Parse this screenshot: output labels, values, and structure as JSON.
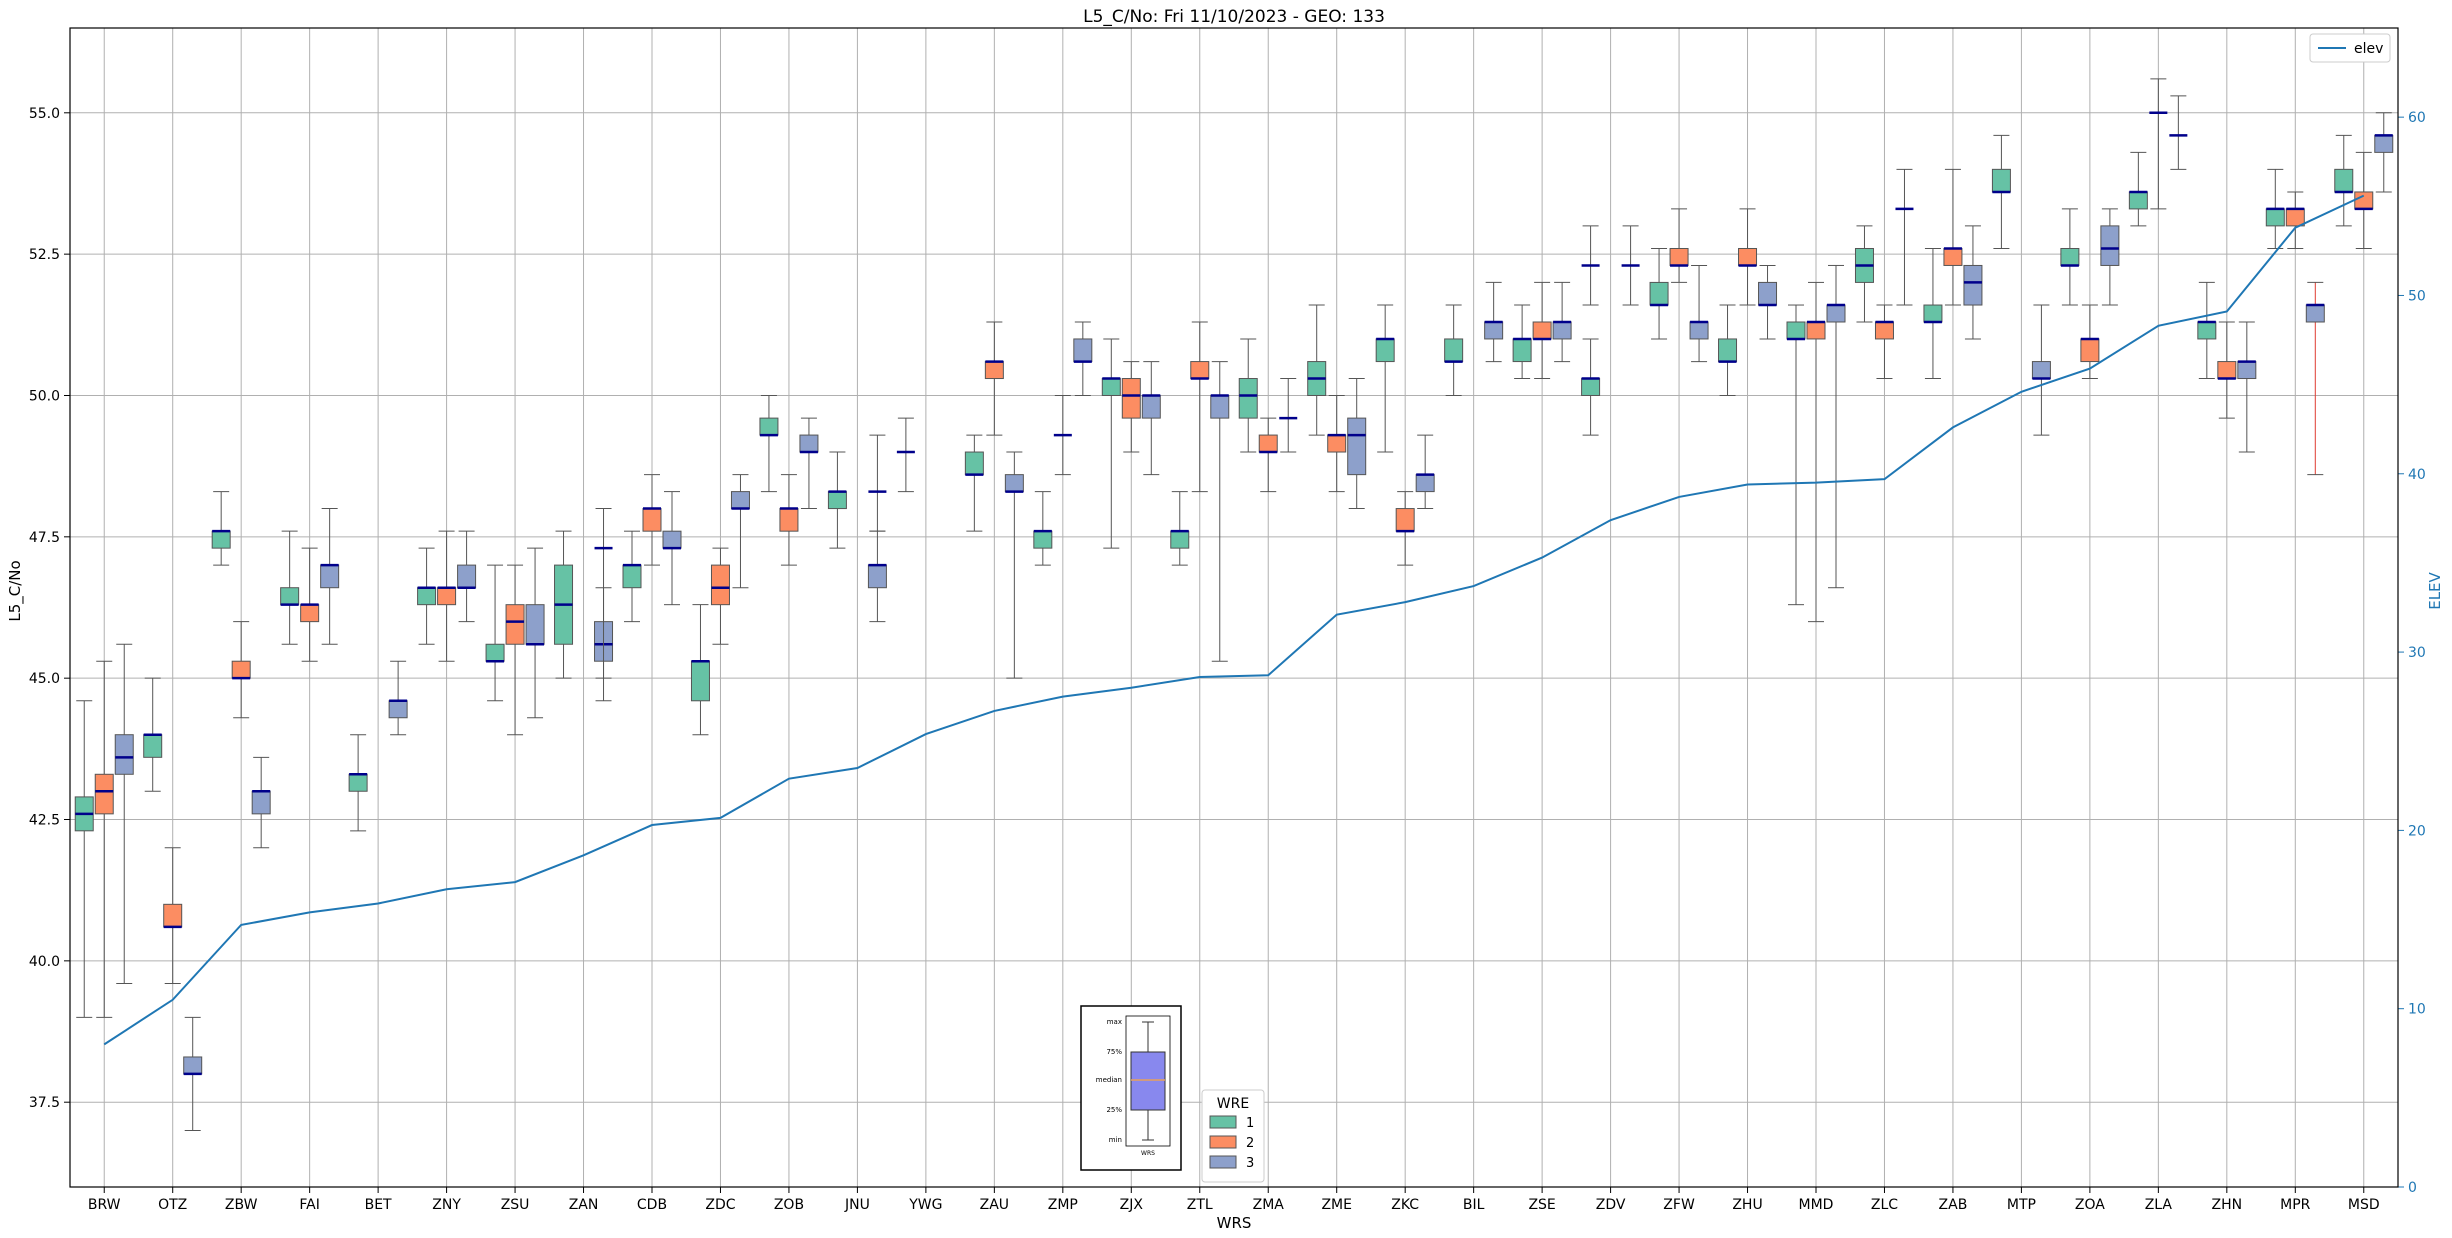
{
  "chart_data": {
    "type": "box",
    "title": "L5_C/No: Fri 11/10/2023 - GEO: 133",
    "xlabel": "WRS",
    "ylabel": "L5_C/No",
    "y2label": "ELEV",
    "ylim": [
      36.0,
      56.5
    ],
    "y2lim": [
      0,
      65
    ],
    "yticks": [
      "37.5",
      "40.0",
      "42.5",
      "45.0",
      "47.5",
      "50.0",
      "52.5",
      "55.0"
    ],
    "y2ticks": [
      "0",
      "10",
      "20",
      "30",
      "40",
      "50",
      "60"
    ],
    "grid": true,
    "categories": [
      "BRW",
      "OTZ",
      "ZBW",
      "FAI",
      "BET",
      "ZNY",
      "ZSU",
      "ZAN",
      "CDB",
      "ZDC",
      "ZOB",
      "JNU",
      "YWG",
      "ZAU",
      "ZMP",
      "ZJX",
      "ZTL",
      "ZMA",
      "ZME",
      "ZKC",
      "BIL",
      "ZSE",
      "ZDV",
      "ZFW",
      "ZHU",
      "MMD",
      "ZLC",
      "ZAB",
      "MTP",
      "ZOA",
      "ZLA",
      "ZHN",
      "MPR",
      "MSD"
    ],
    "legend": {
      "title": "WRE",
      "placement": "bottom-center",
      "entries": [
        {
          "label": "1",
          "color": "#66c2a5"
        },
        {
          "label": "2",
          "color": "#fc8d62"
        },
        {
          "label": "3",
          "color": "#8da0cb"
        }
      ]
    },
    "line_legend": {
      "label": "elev",
      "color": "#1f77b4",
      "placement": "top-right"
    },
    "inset_legend": {
      "labels": [
        "max",
        "75%",
        "median",
        "25%",
        "min"
      ],
      "xlabel": "WRS"
    },
    "colors": {
      "wre1": "#66c2a5",
      "wre2": "#fc8d62",
      "wre3": "#8da0cb",
      "median": "#00008b",
      "whisker": "#555555",
      "elev": "#1f77b4",
      "outlier_whisker": "#e03c31"
    },
    "series": [
      {
        "name": "1",
        "boxes": [
          {
            "cat": "BRW",
            "min": 39.0,
            "q1": 42.3,
            "med": 42.6,
            "q3": 42.9,
            "max": 44.6
          },
          {
            "cat": "OTZ",
            "min": 43.0,
            "q1": 43.6,
            "med": 44.0,
            "q3": 44.0,
            "max": 45.0
          },
          {
            "cat": "ZBW",
            "min": 47.0,
            "q1": 47.3,
            "med": 47.6,
            "q3": 47.6,
            "max": 48.3
          },
          {
            "cat": "FAI",
            "min": 45.6,
            "q1": 46.3,
            "med": 46.3,
            "q3": 46.6,
            "max": 47.6
          },
          {
            "cat": "BET",
            "min": 42.3,
            "q1": 43.0,
            "med": 43.3,
            "q3": 43.3,
            "max": 44.0
          },
          {
            "cat": "ZNY",
            "min": 45.6,
            "q1": 46.3,
            "med": 46.6,
            "q3": 46.6,
            "max": 47.3
          },
          {
            "cat": "ZSU",
            "min": 44.6,
            "q1": 45.3,
            "med": 45.3,
            "q3": 45.6,
            "max": 47.0
          },
          {
            "cat": "ZAN",
            "min": 45.0,
            "q1": 45.6,
            "med": 46.3,
            "q3": 47.0,
            "max": 47.6
          },
          {
            "cat": "CDB",
            "min": 46.0,
            "q1": 46.6,
            "med": 47.0,
            "q3": 47.0,
            "max": 47.6
          },
          {
            "cat": "ZDC",
            "min": 44.0,
            "q1": 44.6,
            "med": 45.3,
            "q3": 45.3,
            "max": 46.3
          },
          {
            "cat": "ZOB",
            "min": 48.3,
            "q1": 49.3,
            "med": 49.3,
            "q3": 49.6,
            "max": 50.0
          },
          {
            "cat": "JNU",
            "min": 47.3,
            "q1": 48.0,
            "med": 48.3,
            "q3": 48.3,
            "max": 49.0
          },
          {
            "cat": "ZAU",
            "min": 47.6,
            "q1": 48.6,
            "med": 48.6,
            "q3": 49.0,
            "max": 49.3
          },
          {
            "cat": "ZMP",
            "min": 47.0,
            "q1": 47.3,
            "med": 47.6,
            "q3": 47.6,
            "max": 48.3
          },
          {
            "cat": "ZJX",
            "min": 47.3,
            "q1": 50.0,
            "med": 50.3,
            "q3": 50.3,
            "max": 51.0
          },
          {
            "cat": "ZTL",
            "min": 47.0,
            "q1": 47.3,
            "med": 47.6,
            "q3": 47.6,
            "max": 48.3
          },
          {
            "cat": "ZMA",
            "min": 49.0,
            "q1": 49.6,
            "med": 50.0,
            "q3": 50.3,
            "max": 51.0
          },
          {
            "cat": "ZME",
            "min": 49.3,
            "q1": 50.0,
            "med": 50.3,
            "q3": 50.6,
            "max": 51.6
          },
          {
            "cat": "ZKC",
            "min": 49.0,
            "q1": 50.6,
            "med": 51.0,
            "q3": 51.0,
            "max": 51.6
          },
          {
            "cat": "BIL",
            "min": 50.0,
            "q1": 50.6,
            "med": 50.6,
            "q3": 51.0,
            "max": 51.6
          },
          {
            "cat": "ZSE",
            "min": 50.3,
            "q1": 50.6,
            "med": 51.0,
            "q3": 51.0,
            "max": 51.6
          },
          {
            "cat": "ZDV",
            "min": 49.3,
            "q1": 50.0,
            "med": 50.3,
            "q3": 50.3,
            "max": 51.0
          },
          {
            "cat": "ZFW",
            "min": 51.0,
            "q1": 51.6,
            "med": 51.6,
            "q3": 52.0,
            "max": 52.6
          },
          {
            "cat": "ZHU",
            "min": 50.0,
            "q1": 50.6,
            "med": 50.6,
            "q3": 51.0,
            "max": 51.6
          },
          {
            "cat": "MMD",
            "min": 46.3,
            "q1": 51.0,
            "med": 51.0,
            "q3": 51.3,
            "max": 51.6
          },
          {
            "cat": "ZLC",
            "min": 51.3,
            "q1": 52.0,
            "med": 52.3,
            "q3": 52.6,
            "max": 53.0
          },
          {
            "cat": "ZAB",
            "min": 50.3,
            "q1": 51.3,
            "med": 51.3,
            "q3": 51.6,
            "max": 52.6
          },
          {
            "cat": "MTP",
            "min": 52.6,
            "q1": 53.6,
            "med": 53.6,
            "q3": 54.0,
            "max": 54.6
          },
          {
            "cat": "ZOA",
            "min": 51.6,
            "q1": 52.3,
            "med": 52.3,
            "q3": 52.6,
            "max": 53.3
          },
          {
            "cat": "ZLA",
            "min": 53.0,
            "q1": 53.3,
            "med": 53.6,
            "q3": 53.6,
            "max": 54.3
          },
          {
            "cat": "ZHN",
            "min": 50.3,
            "q1": 51.0,
            "med": 51.3,
            "q3": 51.3,
            "max": 52.0
          },
          {
            "cat": "MPR",
            "min": 52.6,
            "q1": 53.0,
            "med": 53.3,
            "q3": 53.3,
            "max": 54.0
          },
          {
            "cat": "MSD",
            "min": 53.0,
            "q1": 53.6,
            "med": 53.6,
            "q3": 54.0,
            "max": 54.6
          }
        ]
      },
      {
        "name": "2",
        "boxes": [
          {
            "cat": "BRW",
            "min": 39.0,
            "q1": 42.6,
            "med": 43.0,
            "q3": 43.3,
            "max": 45.3
          },
          {
            "cat": "OTZ",
            "min": 39.6,
            "q1": 40.6,
            "med": 40.6,
            "q3": 41.0,
            "max": 42.0
          },
          {
            "cat": "ZBW",
            "min": 44.3,
            "q1": 45.0,
            "med": 45.0,
            "q3": 45.3,
            "max": 46.0
          },
          {
            "cat": "FAI",
            "min": 45.3,
            "q1": 46.0,
            "med": 46.3,
            "q3": 46.3,
            "max": 47.3
          },
          {
            "cat": "ZNY",
            "min": 45.3,
            "q1": 46.3,
            "med": 46.6,
            "q3": 46.6,
            "max": 47.6
          },
          {
            "cat": "ZSU",
            "min": 44.0,
            "q1": 45.6,
            "med": 46.0,
            "q3": 46.3,
            "max": 47.0
          },
          {
            "cat": "CDB",
            "min": 47.0,
            "q1": 47.6,
            "med": 48.0,
            "q3": 48.0,
            "max": 48.6
          },
          {
            "cat": "ZDC",
            "min": 45.6,
            "q1": 46.3,
            "med": 46.6,
            "q3": 47.0,
            "max": 47.3
          },
          {
            "cat": "ZOB",
            "min": 47.0,
            "q1": 47.6,
            "med": 48.0,
            "q3": 48.0,
            "max": 48.6
          },
          {
            "cat": "ZAU",
            "min": 49.3,
            "q1": 50.3,
            "med": 50.6,
            "q3": 50.6,
            "max": 51.3
          },
          {
            "cat": "ZJX",
            "min": 49.0,
            "q1": 49.6,
            "med": 50.0,
            "q3": 50.3,
            "max": 50.6
          },
          {
            "cat": "ZTL",
            "min": 48.3,
            "q1": 50.3,
            "med": 50.3,
            "q3": 50.6,
            "max": 51.3
          },
          {
            "cat": "ZMA",
            "min": 48.3,
            "q1": 49.0,
            "med": 49.0,
            "q3": 49.3,
            "max": 49.6
          },
          {
            "cat": "ZME",
            "min": 48.3,
            "q1": 49.0,
            "med": 49.3,
            "q3": 49.3,
            "max": 50.0
          },
          {
            "cat": "ZKC",
            "min": 47.0,
            "q1": 47.6,
            "med": 47.6,
            "q3": 48.0,
            "max": 48.3
          },
          {
            "cat": "ZSE",
            "min": 50.3,
            "q1": 51.0,
            "med": 51.0,
            "q3": 51.3,
            "max": 52.0
          },
          {
            "cat": "ZFW",
            "min": 52.0,
            "q1": 52.3,
            "med": 52.3,
            "q3": 52.6,
            "max": 53.3
          },
          {
            "cat": "ZHU",
            "min": 51.6,
            "q1": 52.3,
            "med": 52.3,
            "q3": 52.6,
            "max": 53.3
          },
          {
            "cat": "MMD",
            "min": 46.0,
            "q1": 51.0,
            "med": 51.3,
            "q3": 51.3,
            "max": 52.0
          },
          {
            "cat": "ZLC",
            "min": 50.3,
            "q1": 51.0,
            "med": 51.3,
            "q3": 51.3,
            "max": 51.6
          },
          {
            "cat": "ZAB",
            "min": 51.6,
            "q1": 52.3,
            "med": 52.6,
            "q3": 52.6,
            "max": 54.0
          },
          {
            "cat": "ZOA",
            "min": 50.3,
            "q1": 50.6,
            "med": 51.0,
            "q3": 51.0,
            "max": 51.6
          },
          {
            "cat": "ZHN",
            "min": 49.6,
            "q1": 50.3,
            "med": 50.3,
            "q3": 50.6,
            "max": 51.3
          },
          {
            "cat": "MPR",
            "min": 52.6,
            "q1": 53.0,
            "med": 53.3,
            "q3": 53.3,
            "max": 53.6
          },
          {
            "cat": "MSD",
            "min": 52.6,
            "q1": 53.3,
            "med": 53.3,
            "q3": 53.6,
            "max": 54.3
          }
        ]
      },
      {
        "name": "3",
        "boxes": [
          {
            "cat": "BRW",
            "min": 39.6,
            "q1": 43.3,
            "med": 43.6,
            "q3": 44.0,
            "max": 45.6
          },
          {
            "cat": "OTZ",
            "min": 37.0,
            "q1": 38.0,
            "med": 38.0,
            "q3": 38.3,
            "max": 39.0
          },
          {
            "cat": "ZBW",
            "min": 42.0,
            "q1": 42.6,
            "med": 43.0,
            "q3": 43.0,
            "max": 43.6
          },
          {
            "cat": "FAI",
            "min": 45.6,
            "q1": 46.6,
            "med": 47.0,
            "q3": 47.0,
            "max": 48.0
          },
          {
            "cat": "BET",
            "min": 44.0,
            "q1": 44.3,
            "med": 44.6,
            "q3": 44.6,
            "max": 45.3
          },
          {
            "cat": "ZNY",
            "min": 46.0,
            "q1": 46.6,
            "med": 46.6,
            "q3": 47.0,
            "max": 47.6
          },
          {
            "cat": "ZSU",
            "min": 44.3,
            "q1": 45.6,
            "med": 45.6,
            "q3": 46.3,
            "max": 47.3
          },
          {
            "cat": "ZAN",
            "min": 44.6,
            "q1": 45.3,
            "med": 45.6,
            "q3": 46.0,
            "max": 46.6
          },
          {
            "cat": "CDB",
            "min": 46.3,
            "q1": 47.3,
            "med": 47.3,
            "q3": 47.6,
            "max": 48.3
          },
          {
            "cat": "ZDC",
            "min": 46.6,
            "q1": 48.0,
            "med": 48.0,
            "q3": 48.3,
            "max": 48.6
          },
          {
            "cat": "ZOB",
            "min": 48.0,
            "q1": 49.0,
            "med": 49.0,
            "q3": 49.3,
            "max": 49.6
          },
          {
            "cat": "JNU",
            "min": 46.0,
            "q1": 46.6,
            "med": 47.0,
            "q3": 47.0,
            "max": 47.6
          },
          {
            "cat": "ZAU",
            "min": 45.0,
            "q1": 48.3,
            "med": 48.3,
            "q3": 48.6,
            "max": 49.0
          },
          {
            "cat": "ZMP",
            "min": 50.0,
            "q1": 50.6,
            "med": 50.6,
            "q3": 51.0,
            "max": 51.3
          },
          {
            "cat": "ZJX",
            "min": 48.6,
            "q1": 49.6,
            "med": 50.0,
            "q3": 50.0,
            "max": 50.6
          },
          {
            "cat": "ZTL",
            "min": 45.3,
            "q1": 49.6,
            "med": 50.0,
            "q3": 50.0,
            "max": 50.6
          },
          {
            "cat": "ZME",
            "min": 48.0,
            "q1": 48.6,
            "med": 49.3,
            "q3": 49.6,
            "max": 50.3
          },
          {
            "cat": "ZKC",
            "min": 48.0,
            "q1": 48.3,
            "med": 48.6,
            "q3": 48.6,
            "max": 49.3
          },
          {
            "cat": "BIL",
            "min": 50.6,
            "q1": 51.0,
            "med": 51.3,
            "q3": 51.3,
            "max": 52.0
          },
          {
            "cat": "ZSE",
            "min": 50.6,
            "q1": 51.0,
            "med": 51.3,
            "q3": 51.3,
            "max": 52.0
          },
          {
            "cat": "ZFW",
            "min": 50.6,
            "q1": 51.0,
            "med": 51.3,
            "q3": 51.3,
            "max": 52.3
          },
          {
            "cat": "ZHU",
            "min": 51.0,
            "q1": 51.6,
            "med": 51.6,
            "q3": 52.0,
            "max": 52.3
          },
          {
            "cat": "MMD",
            "min": 46.6,
            "q1": 51.3,
            "med": 51.6,
            "q3": 51.6,
            "max": 52.3
          },
          {
            "cat": "ZAB",
            "min": 51.0,
            "q1": 51.6,
            "med": 52.0,
            "q3": 52.3,
            "max": 53.0
          },
          {
            "cat": "MTP",
            "min": 49.3,
            "q1": 50.3,
            "med": 50.3,
            "q3": 50.6,
            "max": 51.6
          },
          {
            "cat": "ZOA",
            "min": 51.6,
            "q1": 52.3,
            "med": 52.6,
            "q3": 53.0,
            "max": 53.3
          },
          {
            "cat": "ZHN",
            "min": 49.0,
            "q1": 50.3,
            "med": 50.6,
            "q3": 50.6,
            "max": 51.3
          },
          {
            "cat": "MSD",
            "min": 53.6,
            "q1": 54.3,
            "med": 54.6,
            "q3": 54.6,
            "max": 55.0
          }
        ]
      }
    ],
    "median_only": [
      {
        "wre": "3",
        "cat": "ZAN",
        "min": 45.0,
        "med": 47.3,
        "max": 48.0
      },
      {
        "wre": "3",
        "cat": "JNU",
        "min": 47.6,
        "med": 48.3,
        "max": 49.3
      },
      {
        "wre": "1",
        "cat": "YWG",
        "min": 48.3,
        "med": 49.0,
        "max": 49.6
      },
      {
        "wre": "2",
        "cat": "ZMP",
        "min": 48.6,
        "med": 49.3,
        "max": 50.0
      },
      {
        "wre": "3",
        "cat": "ZMA",
        "min": 49.0,
        "med": 49.6,
        "max": 50.3
      },
      {
        "wre": "3",
        "cat": "ZDV",
        "min": 51.6,
        "med": 52.3,
        "max": 53.0
      },
      {
        "wre": "1",
        "cat": "ZDV",
        "min": 51.6,
        "med": 52.3,
        "max": 53.0
      },
      {
        "wre": "3",
        "cat": "ZLC",
        "min": 51.6,
        "med": 53.3,
        "max": 54.0
      },
      {
        "wre": "2",
        "cat": "ZLA",
        "min": 53.3,
        "med": 55.0,
        "max": 55.6
      },
      {
        "wre": "3",
        "cat": "ZLA",
        "min": 54.0,
        "med": 54.6,
        "max": 55.3
      }
    ],
    "special_boxes": [
      {
        "wre": "3",
        "cat": "MPR",
        "min": 48.6,
        "q1": 51.3,
        "med": 51.6,
        "q3": 51.6,
        "max": 52.0
      }
    ],
    "elev": {
      "name": "elev",
      "values": [
        8,
        10.5,
        14.7,
        15.4,
        15.9,
        16.7,
        17.1,
        18.6,
        20.3,
        20.7,
        22.9,
        23.5,
        25.4,
        26.7,
        27.5,
        28.0,
        28.6,
        28.7,
        32.1,
        32.8,
        33.7,
        35.3,
        37.4,
        38.7,
        39.4,
        39.5,
        39.7,
        42.6,
        44.6,
        45.9,
        48.3,
        49.1,
        53.8,
        55.6
      ]
    }
  }
}
